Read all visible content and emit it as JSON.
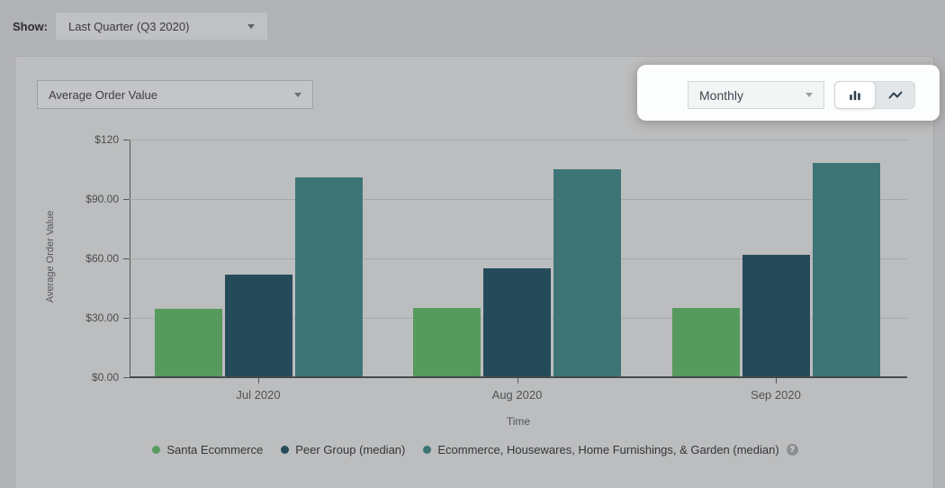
{
  "toolbar": {
    "show_label": "Show:",
    "period_dropdown_value": "Last Quarter (Q3 2020)"
  },
  "panel": {
    "metric_dropdown_value": "Average Order Value",
    "granularity_dropdown_value": "Monthly",
    "chart_toggle": {
      "options": [
        {
          "icon": "bar-chart-icon",
          "selected": true
        },
        {
          "icon": "line-chart-icon",
          "selected": false
        }
      ]
    }
  },
  "chart_data": {
    "type": "bar",
    "title": "",
    "categories": [
      "Jul 2020",
      "Aug 2020",
      "Sep 2020"
    ],
    "series": [
      {
        "name": "Santa Ecommerce",
        "color": "#579a5e",
        "values": [
          34.5,
          35,
          35
        ]
      },
      {
        "name": "Peer Group (median)",
        "color": "#254b5b",
        "values": [
          52,
          55,
          62
        ]
      },
      {
        "name": "Ecommerce, Housewares, Home Furnishings, & Garden (median)",
        "color": "#3d7476",
        "values": [
          101,
          105,
          108
        ]
      }
    ],
    "xlabel": "Time",
    "ylabel": "Average Order Value",
    "ylim": [
      0,
      120
    ],
    "yticks": [
      {
        "value": 0,
        "label": "$0.00"
      },
      {
        "value": 30,
        "label": "$30.00"
      },
      {
        "value": 60,
        "label": "$60.00"
      },
      {
        "value": 90,
        "label": "$90.00"
      },
      {
        "value": 120,
        "label": "$120"
      }
    ],
    "grid": true,
    "legend_position": "bottom",
    "legend_help_icon": "?"
  }
}
